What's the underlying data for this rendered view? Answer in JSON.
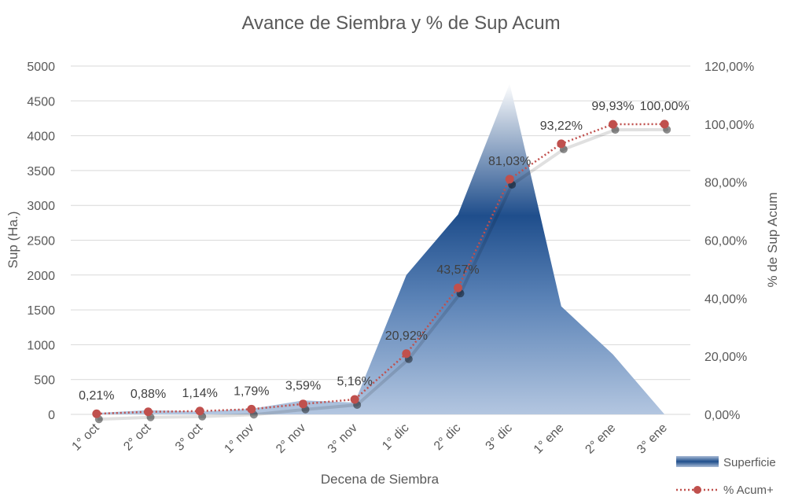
{
  "chart_data": {
    "type": "area",
    "title": "Avance de Siembra y % de Sup Acum",
    "xlabel": "Decena de Siembra",
    "ylabel": "Sup (Ha.)",
    "y2label": "% de Sup Acum",
    "categories": [
      "1° oct",
      "2° oct",
      "3° oct",
      "1° nov",
      "2° nov",
      "3° nov",
      "1° dic",
      "2° dic",
      "3° dic",
      "1° ene",
      "2° ene",
      "3° ene"
    ],
    "ylim": [
      0,
      5000
    ],
    "yticks": [
      "0",
      "500",
      "1000",
      "1500",
      "2000",
      "2500",
      "3000",
      "3500",
      "4000",
      "4500",
      "5000"
    ],
    "y2lim": [
      0,
      120
    ],
    "y2ticks": [
      "0,00%",
      "20,00%",
      "40,00%",
      "60,00%",
      "80,00%",
      "100,00%",
      "120,00%"
    ],
    "grid": true,
    "legend_position": "bottom-right",
    "series": [
      {
        "name": "Superficie",
        "kind": "area",
        "axis": "left",
        "color": "#1f4e8c",
        "values": [
          20,
          60,
          40,
          80,
          200,
          170,
          2000,
          2870,
          4750,
          1550,
          860,
          0
        ]
      },
      {
        "name": "% Acum+",
        "kind": "line",
        "axis": "right",
        "color": "#c0504d",
        "values": [
          0.21,
          0.88,
          1.14,
          1.79,
          3.59,
          5.16,
          20.92,
          43.57,
          81.03,
          93.22,
          99.93,
          100.0
        ],
        "labels": [
          "0,21%",
          "0,88%",
          "1,14%",
          "1,79%",
          "3,59%",
          "5,16%",
          "20,92%",
          "43,57%",
          "81,03%",
          "93,22%",
          "99,93%",
          "100,00%"
        ]
      }
    ]
  }
}
